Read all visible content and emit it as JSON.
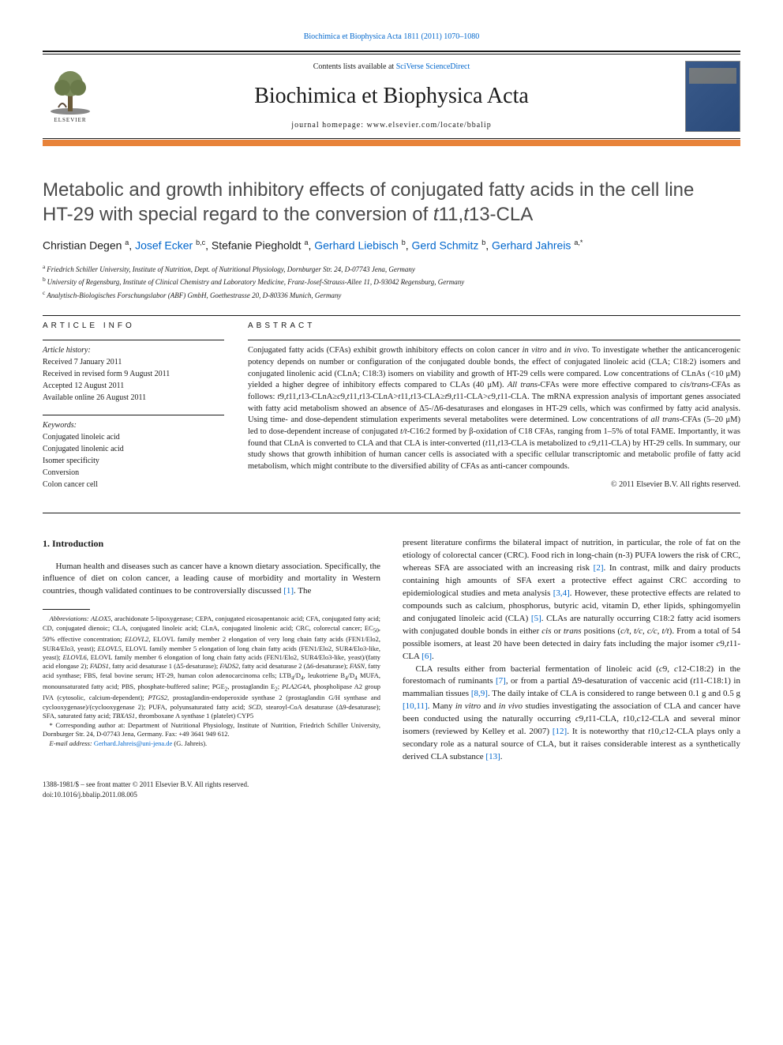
{
  "top_citation": "Biochimica et Biophysica Acta 1811 (2011) 1070–1080",
  "contents_available": "Contents lists available at ",
  "contents_link": "SciVerse ScienceDirect",
  "journal_name": "Biochimica et Biophysica Acta",
  "homepage_label": "journal homepage: www.elsevier.com/locate/bbalip",
  "publisher": "ELSEVIER",
  "title_line1": "Metabolic and growth inhibitory effects of conjugated fatty acids in the cell line",
  "title_line2_pre": "HT-29 with special regard to the conversion of ",
  "title_line2_ital": "t",
  "title_line2_mid": "11,",
  "title_line2_ital2": "t",
  "title_line2_post": "13-CLA",
  "authors": [
    {
      "name": "Christian Degen",
      "aff": "a",
      "link": false
    },
    {
      "name": "Josef Ecker",
      "aff": "b,c",
      "link": true
    },
    {
      "name": "Stefanie Piegholdt",
      "aff": "a",
      "link": false
    },
    {
      "name": "Gerhard Liebisch",
      "aff": "b",
      "link": true
    },
    {
      "name": "Gerd Schmitz",
      "aff": "b",
      "link": true
    },
    {
      "name": "Gerhard Jahreis",
      "aff": "a,*",
      "link": true
    }
  ],
  "affiliations": [
    {
      "sup": "a",
      "text": "Friedrich Schiller University, Institute of Nutrition, Dept. of Nutritional Physiology, Dornburger Str. 24, D-07743 Jena, Germany"
    },
    {
      "sup": "b",
      "text": "University of Regensburg, Institute of Clinical Chemistry and Laboratory Medicine, Franz-Josef-Strauss-Allee 11, D-93042 Regensburg, Germany"
    },
    {
      "sup": "c",
      "text": "Analytisch-Biologisches Forschungslabor (ABF) GmbH, Goethestrasse 20, D-80336 Munich, Germany"
    }
  ],
  "article_info_head": "ARTICLE INFO",
  "abstract_head": "ABSTRACT",
  "history_label": "Article history:",
  "history": [
    "Received 7 January 2011",
    "Received in revised form 9 August 2011",
    "Accepted 12 August 2011",
    "Available online 26 August 2011"
  ],
  "keywords_label": "Keywords:",
  "keywords": [
    "Conjugated linoleic acid",
    "Conjugated linolenic acid",
    "Isomer specificity",
    "Conversion",
    "Colon cancer cell"
  ],
  "abstract_html": "Conjugated fatty acids (CFAs) exhibit growth inhibitory effects on colon cancer <span class=\"ital\">in vitro</span> and <span class=\"ital\">in vivo</span>. To investigate whether the anticancerogenic potency depends on number or configuration of the conjugated double bonds, the effect of conjugated linoleic acid (CLA; C18:2) isomers and conjugated linolenic acid (CLnA; C18:3) isomers on viability and growth of HT-29 cells were compared. Low concentrations of CLnAs (&lt;10 μM) yielded a higher degree of inhibitory effects compared to CLAs (40 μM). <span class=\"ital\">All trans</span>-CFAs were more effective compared to <span class=\"ital\">cis/trans</span>-CFAs as follows: <span class=\"ital\">t</span>9,<span class=\"ital\">t</span>11,<span class=\"ital\">t</span>13-CLnA≥<span class=\"ital\">c</span>9,<span class=\"ital\">t</span>11,<span class=\"ital\">t</span>13-CLnA&gt;<span class=\"ital\">t</span>11,<span class=\"ital\">t</span>13-CLA≥<span class=\"ital\">t</span>9,<span class=\"ital\">t</span>11-CLA&gt;<span class=\"ital\">c</span>9,<span class=\"ital\">t</span>11-CLA. The mRNA expression analysis of important genes associated with fatty acid metabolism showed an absence of Δ5-/Δ6-desaturases and elongases in HT-29 cells, which was confirmed by fatty acid analysis. Using time- and dose-dependent stimulation experiments several metabolites were determined. Low concentrations of <span class=\"ital\">all trans</span>-CFAs (5–20 μM) led to dose-dependent increase of conjugated <span class=\"ital\">t/t</span>-C16:2 formed by β-oxidation of C18 CFAs, ranging from 1–5% of total FAME. Importantly, it was found that CLnA is converted to CLA and that CLA is inter-converted (<span class=\"ital\">t</span>11,<span class=\"ital\">t</span>13-CLA is metabolized to <span class=\"ital\">c</span>9,<span class=\"ital\">t</span>11-CLA) by HT-29 cells. In summary, our study shows that growth inhibition of human cancer cells is associated with a specific cellular transcriptomic and metabolic profile of fatty acid metabolism, which might contribute to the diversified ability of CFAs as anti-cancer compounds.",
  "copyright": "© 2011 Elsevier B.V. All rights reserved.",
  "intro_head": "1. Introduction",
  "col1_p1_html": "Human health and diseases such as cancer have a known dietary association. Specifically, the influence of diet on colon cancer, a leading cause of morbidity and mortality in Western countries, though validated continues to be controversially discussed <span class=\"ref\">[1]</span>. The",
  "abbrev_html": "<span class=\"ital\">Abbreviations:</span> <span class=\"ital\">ALOX5</span>, arachidonate 5-lipoxygenase; CEPA, conjugated eicosapentanoic acid; CFA, conjugated fatty acid; CD, conjugated dienoic; CLA, conjugated linoleic acid; CLnA, conjugated linolenic acid; CRC, colorectal cancer; EC<sub>50</sub>, 50% effective concentration; <span class=\"ital\">ELOVL2</span>, ELOVL family member 2 elongation of very long chain fatty acids (FEN1/Elo2, SUR4/Elo3, yeast); <span class=\"ital\">ELOVL5</span>, ELOVL family member 5 elongation of long chain fatty acids (FEN1/Elo2, SUR4/Elo3-like, yeast); <span class=\"ital\">ELOVL6</span>, ELOVL family member 6 elongation of long chain fatty acids (FEN1/Elo2, SUR4/Elo3-like, yeast)/(fatty acid elongase 2); <span class=\"ital\">FADS1</span>, fatty acid desaturase 1 (Δ5-desaturase); <span class=\"ital\">FADS2</span>, fatty acid desaturase 2 (Δ6-desaturase); <span class=\"ital\">FASN</span>, fatty acid synthase; FBS, fetal bovine serum; HT-29, human colon adenocarcinoma cells; LTB<sub>4</sub>/D<sub>4</sub>, leukotriene B<sub>4</sub>/D<sub>4</sub> MUFA, monounsaturated fatty acid; PBS, phosphate-buffered saline; PGE<sub>2</sub>, prostaglandin E<sub>2</sub>; <span class=\"ital\">PLA2G4A</span>, phospholipase A2 group IVA (cytosolic, calcium-dependent); <span class=\"ital\">PTGS2</span>, prostaglandin-endoperoxide synthase 2 (prostaglandin G/H synthase and cyclooxygenase)/(cyclooxygenase 2); PUFA, polyunsaturated fatty acid; <span class=\"ital\">SCD</span>, stearoyl-CoA desaturase (Δ9-desaturase); SFA, saturated fatty acid; <span class=\"ital\">TBXAS1</span>, thromboxane A synthase 1 (platelet) CYP5",
  "corr_html": "* Corresponding author at: Department of Nutritional Physiology, Institute of Nutrition, Friedrich Schiller University, Dornburger Str. 24, D-07743 Jena, Germany. Fax: +49 3641 949 612.",
  "email_label": "E-mail address:",
  "email_value": "Gerhard.Jahreis@uni-jena.de",
  "email_owner": "(G. Jahreis).",
  "col2_p1_html": "present literature confirms the bilateral impact of nutrition, in particular, the role of fat on the etiology of colorectal cancer (CRC). Food rich in long-chain (n-3) PUFA lowers the risk of CRC, whereas SFA are associated with an increasing risk <span class=\"ref\">[2]</span>. In contrast, milk and dairy products containing high amounts of SFA exert a protective effect against CRC according to epidemiological studies and meta analysis <span class=\"ref\">[3,4]</span>. However, these protective effects are related to compounds such as calcium, phosphorus, butyric acid, vitamin D, ether lipids, sphingomyelin and conjugated linoleic acid (CLA) <span class=\"ref\">[5]</span>. CLAs are naturally occurring C18:2 fatty acid isomers with conjugated double bonds in either <span class=\"ital\">cis</span> or <span class=\"ital\">trans</span> positions (<span class=\"ital\">c/t</span>, <span class=\"ital\">t/c</span>, <span class=\"ital\">c/c</span>, <span class=\"ital\">t/t</span>). From a total of 54 possible isomers, at least 20 have been detected in dairy fats including the major isomer <span class=\"ital\">c</span>9,<span class=\"ital\">t</span>11-CLA <span class=\"ref\">[6]</span>.",
  "col2_p2_html": "CLA results either from bacterial fermentation of linoleic acid (<span class=\"ital\">c</span>9, <span class=\"ital\">c</span>12-C18:2) in the forestomach of ruminants <span class=\"ref\">[7]</span>, or from a partial Δ9-desaturation of vaccenic acid (<span class=\"ital\">t</span>11-C18:1) in mammalian tissues <span class=\"ref\">[8,9]</span>. The daily intake of CLA is considered to range between 0.1 g and 0.5 g <span class=\"ref\">[10,11]</span>. Many <span class=\"ital\">in vitro</span> and <span class=\"ital\">in vivo</span> studies investigating the association of CLA and cancer have been conducted using the naturally occurring <span class=\"ital\">c</span>9,<span class=\"ital\">t</span>11-CLA, <span class=\"ital\">t</span>10,<span class=\"ital\">c</span>12-CLA and several minor isomers (reviewed by Kelley et al. 2007) <span class=\"ref\">[12]</span>. It is noteworthy that <span class=\"ital\">t</span>10,<span class=\"ital\">c</span>12-CLA plays only a secondary role as a natural source of CLA, but it raises considerable interest as a synthetically derived CLA substance <span class=\"ref\">[13]</span>.",
  "issn_line": "1388-1981/$ – see front matter © 2011 Elsevier B.V. All rights reserved.",
  "doi_line": "doi:10.1016/j.bbalip.2011.08.005",
  "colors": {
    "link": "#0066cc",
    "orange_rule": "#e8833a",
    "text": "#1a1a1a",
    "title_gray": "#4a4a4a"
  }
}
